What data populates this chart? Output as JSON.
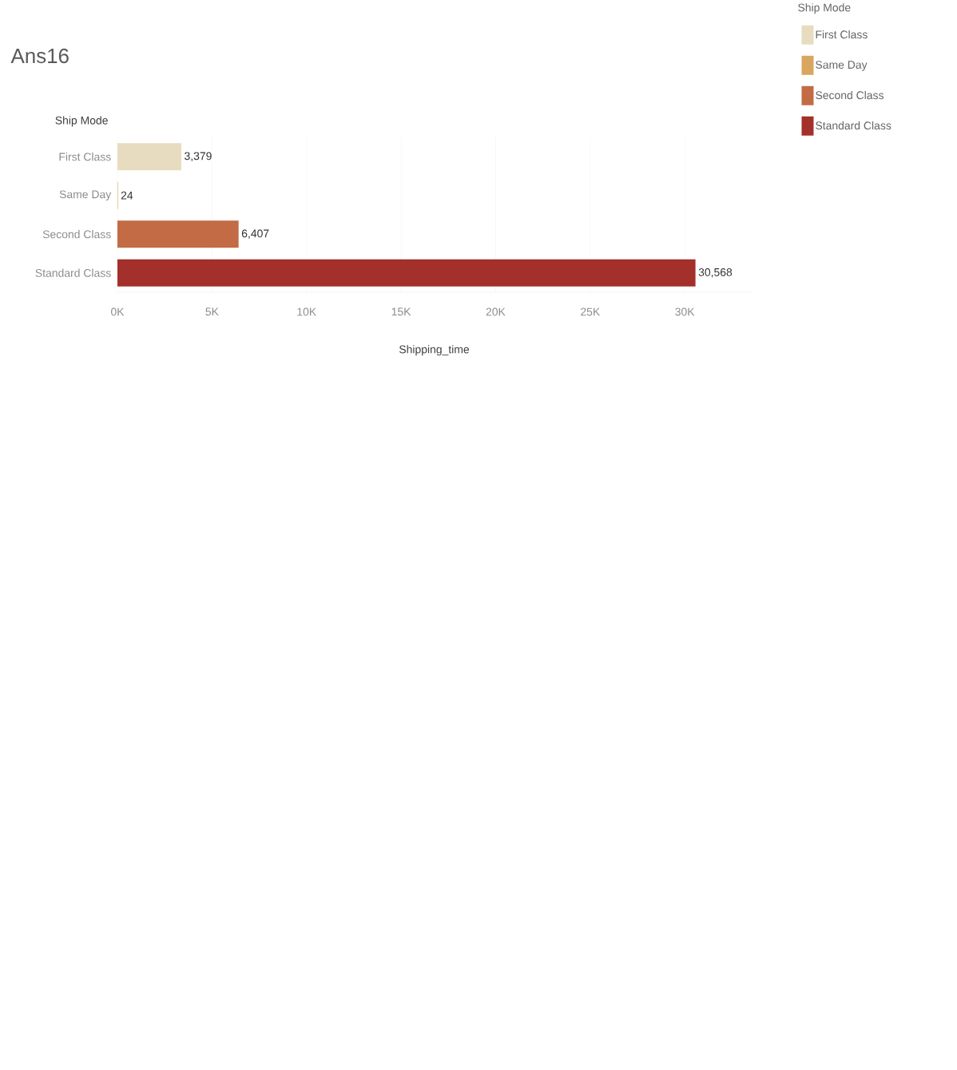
{
  "chart_data": {
    "type": "bar",
    "orientation": "horizontal",
    "title": "Ans16",
    "xlabel": "Shipping_time",
    "ylabel": "Ship Mode",
    "legend_title": "Ship Mode",
    "categories": [
      "First Class",
      "Same Day",
      "Second Class",
      "Standard Class"
    ],
    "series": [
      {
        "name": "First Class",
        "color": "#e8dcc0",
        "values": [
          3379,
          null,
          null,
          null
        ],
        "value_labels": [
          "3,379",
          null,
          null,
          null
        ]
      },
      {
        "name": "Same Day",
        "color": "#d9a660",
        "values": [
          null,
          24,
          null,
          null
        ],
        "value_labels": [
          null,
          "24",
          null,
          null
        ]
      },
      {
        "name": "Second Class",
        "color": "#c26b45",
        "values": [
          null,
          null,
          6407,
          null
        ],
        "value_labels": [
          null,
          null,
          "6,407",
          null
        ]
      },
      {
        "name": "Standard Class",
        "color": "#a3302b",
        "values": [
          null,
          null,
          null,
          30568
        ],
        "value_labels": [
          null,
          null,
          null,
          "30,568"
        ]
      }
    ],
    "xlim": [
      0,
      33500
    ],
    "xticks": [
      {
        "value": 0,
        "label": "0K"
      },
      {
        "value": 5000,
        "label": "5K"
      },
      {
        "value": 10000,
        "label": "10K"
      },
      {
        "value": 15000,
        "label": "15K"
      },
      {
        "value": 20000,
        "label": "20K"
      },
      {
        "value": 25000,
        "label": "25K"
      },
      {
        "value": 30000,
        "label": "30K"
      }
    ],
    "grid": "x",
    "legend": "right"
  }
}
